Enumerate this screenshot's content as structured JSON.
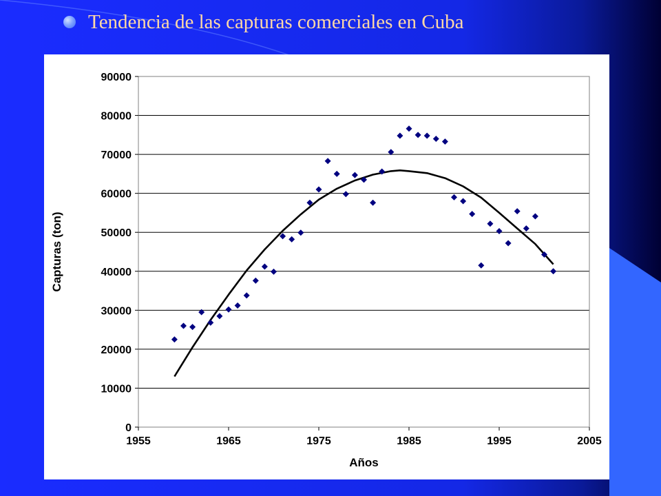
{
  "slide": {
    "title": "Tendencia de las capturas comerciales en Cuba",
    "bullet_icon": "circle-bullet-icon",
    "colors": {
      "background": "#1a2cff",
      "title_text": "#ffd8a6",
      "corner_dark": "#000033",
      "corner_light": "#3366ff"
    }
  },
  "chart_data": {
    "type": "scatter",
    "title": "",
    "xlabel": "Años",
    "ylabel": "Capturas (ton)",
    "xlim": [
      1955,
      2005
    ],
    "ylim": [
      0,
      90000
    ],
    "x_ticks": [
      1955,
      1965,
      1975,
      1985,
      1995,
      2005
    ],
    "y_ticks": [
      0,
      10000,
      20000,
      30000,
      40000,
      50000,
      60000,
      70000,
      80000,
      90000
    ],
    "x_tick_labels": [
      "1955",
      "1965",
      "1975",
      "1985",
      "1995",
      "2005"
    ],
    "y_tick_labels": [
      "0",
      "10000",
      "20000",
      "30000",
      "40000",
      "50000",
      "60000",
      "70000",
      "80000",
      "90000"
    ],
    "grid": "horizontal",
    "marker_color": "#000080",
    "trend_color": "#000000",
    "points": [
      [
        1959,
        22500
      ],
      [
        1960,
        26000
      ],
      [
        1961,
        25700
      ],
      [
        1962,
        29500
      ],
      [
        1963,
        26800
      ],
      [
        1964,
        28500
      ],
      [
        1965,
        30200
      ],
      [
        1966,
        31200
      ],
      [
        1967,
        33800
      ],
      [
        1968,
        37600
      ],
      [
        1969,
        41200
      ],
      [
        1970,
        39900
      ],
      [
        1971,
        49000
      ],
      [
        1972,
        48200
      ],
      [
        1973,
        49900
      ],
      [
        1974,
        57600
      ],
      [
        1975,
        61000
      ],
      [
        1976,
        68300
      ],
      [
        1977,
        65000
      ],
      [
        1978,
        59800
      ],
      [
        1979,
        64700
      ],
      [
        1980,
        63500
      ],
      [
        1981,
        57600
      ],
      [
        1982,
        65600
      ],
      [
        1983,
        70600
      ],
      [
        1984,
        74800
      ],
      [
        1985,
        76600
      ],
      [
        1986,
        75000
      ],
      [
        1987,
        74800
      ],
      [
        1988,
        74000
      ],
      [
        1989,
        73300
      ],
      [
        1990,
        59000
      ],
      [
        1991,
        58000
      ],
      [
        1992,
        54700
      ],
      [
        1993,
        41500
      ],
      [
        1994,
        52200
      ],
      [
        1995,
        50300
      ],
      [
        1996,
        47200
      ],
      [
        1997,
        55400
      ],
      [
        1998,
        51000
      ],
      [
        1999,
        54100
      ],
      [
        2000,
        44300
      ],
      [
        2001,
        40000
      ]
    ],
    "trend": {
      "type": "polynomial",
      "x": [
        1959,
        1961,
        1963,
        1965,
        1967,
        1969,
        1971,
        1973,
        1975,
        1977,
        1979,
        1981,
        1983,
        1984,
        1985,
        1987,
        1989,
        1991,
        1993,
        1995,
        1997,
        1999,
        2001
      ],
      "y": [
        13000,
        20500,
        27500,
        34000,
        40200,
        45600,
        50400,
        54600,
        58400,
        61200,
        63300,
        64800,
        65700,
        65900,
        65700,
        65200,
        63900,
        61800,
        58900,
        55000,
        51000,
        47000,
        41800
      ]
    }
  }
}
